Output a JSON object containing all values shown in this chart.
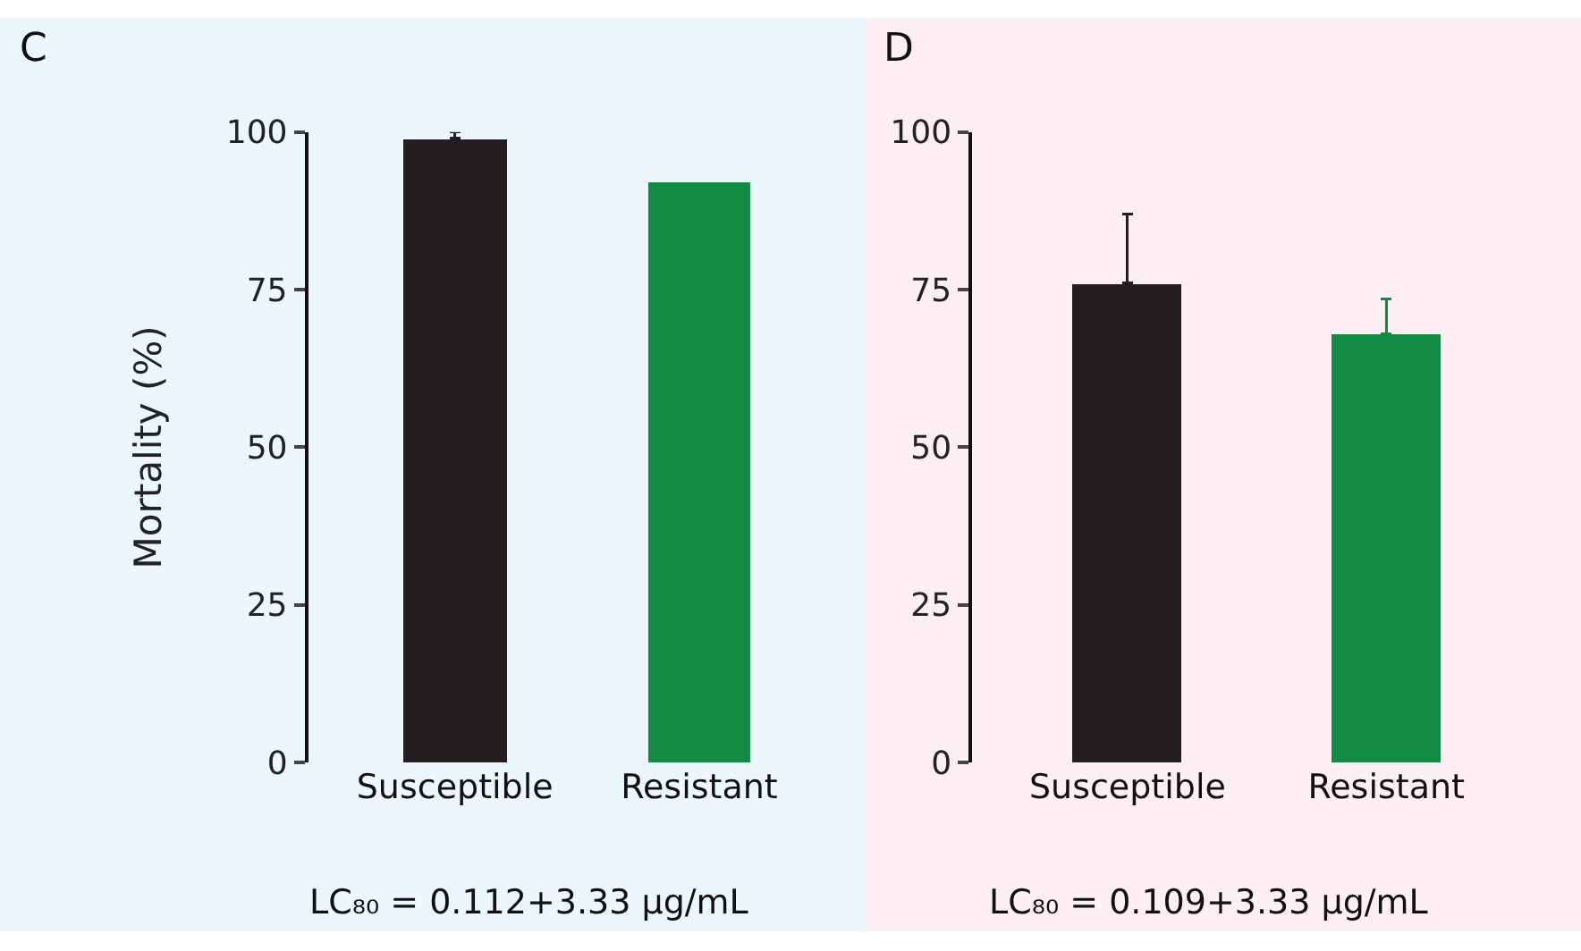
{
  "chart_data": [
    {
      "type": "bar",
      "title": "C",
      "ylabel": "Mortality (%)",
      "categories": [
        "Susceptible",
        "Resistant"
      ],
      "values": [
        99,
        92
      ],
      "colors": [
        "#231f20",
        "#138a43"
      ],
      "errors": [
        1,
        null
      ],
      "ylim": [
        0,
        100
      ],
      "yticks": [
        0,
        25,
        50,
        75,
        100
      ],
      "grid": false,
      "annotations": [
        "LC₈₀ = 0.112+3.33 μg/mL"
      ]
    },
    {
      "type": "bar",
      "title": "D",
      "categories": [
        "Susceptible",
        "Resistant"
      ],
      "values": [
        76,
        68
      ],
      "colors": [
        "#231f20",
        "#138a43"
      ],
      "errors": [
        11,
        5.5
      ],
      "ylim": [
        0,
        100
      ],
      "yticks": [
        0,
        25,
        50,
        75,
        100
      ],
      "grid": false,
      "annotations": [
        "LC₈₀ = 0.109+3.33 μg/mL"
      ]
    }
  ]
}
